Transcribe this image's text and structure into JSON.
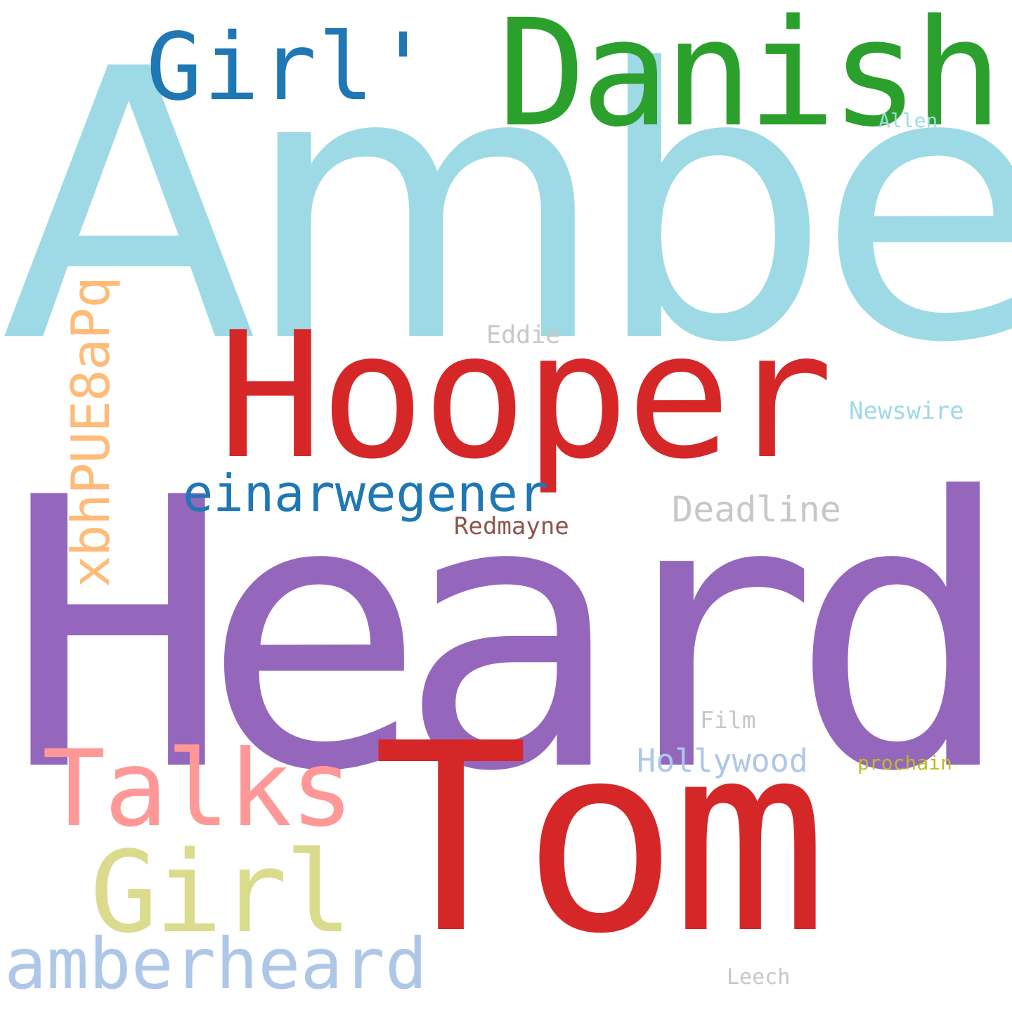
{
  "words": [
    {
      "key": "amber",
      "text": "Amber",
      "color": "#9edae5"
    },
    {
      "key": "heard",
      "text": "Heard",
      "color": "#9467bd"
    },
    {
      "key": "tom",
      "text": "Tom",
      "color": "#d62728"
    },
    {
      "key": "hooper",
      "text": "Hooper",
      "color": "#d62728"
    },
    {
      "key": "danish",
      "text": "Danish",
      "color": "#2ca02c"
    },
    {
      "key": "girl_quote",
      "text": "Girl'",
      "color": "#1f77b4"
    },
    {
      "key": "talks",
      "text": "Talks",
      "color": "#ff9896"
    },
    {
      "key": "girl",
      "text": "Girl",
      "color": "#dbdb8d"
    },
    {
      "key": "amberheard",
      "text": "amberheard",
      "color": "#aec7e8"
    },
    {
      "key": "einarwegener",
      "text": "einarwegener",
      "color": "#1f77b4"
    },
    {
      "key": "xbhpue8apq",
      "text": "xbhPUE8aPq",
      "color": "#ffbb78"
    },
    {
      "key": "deadline",
      "text": "Deadline",
      "color": "#c7c7c7"
    },
    {
      "key": "hollywood",
      "text": "Hollywood",
      "color": "#aec7e8"
    },
    {
      "key": "redmayne",
      "text": "Redmayne",
      "color": "#8c564b"
    },
    {
      "key": "newswire",
      "text": "Newswire",
      "color": "#9edae5"
    },
    {
      "key": "eddie",
      "text": "Eddie",
      "color": "#c7c7c7"
    },
    {
      "key": "film",
      "text": "Film",
      "color": "#c7c7c7"
    },
    {
      "key": "prochain",
      "text": "prochain",
      "color": "#bcbd22"
    },
    {
      "key": "allen",
      "text": "Allen",
      "color": "#9edae5"
    },
    {
      "key": "leech",
      "text": "Leech",
      "color": "#c7c7c7"
    }
  ]
}
